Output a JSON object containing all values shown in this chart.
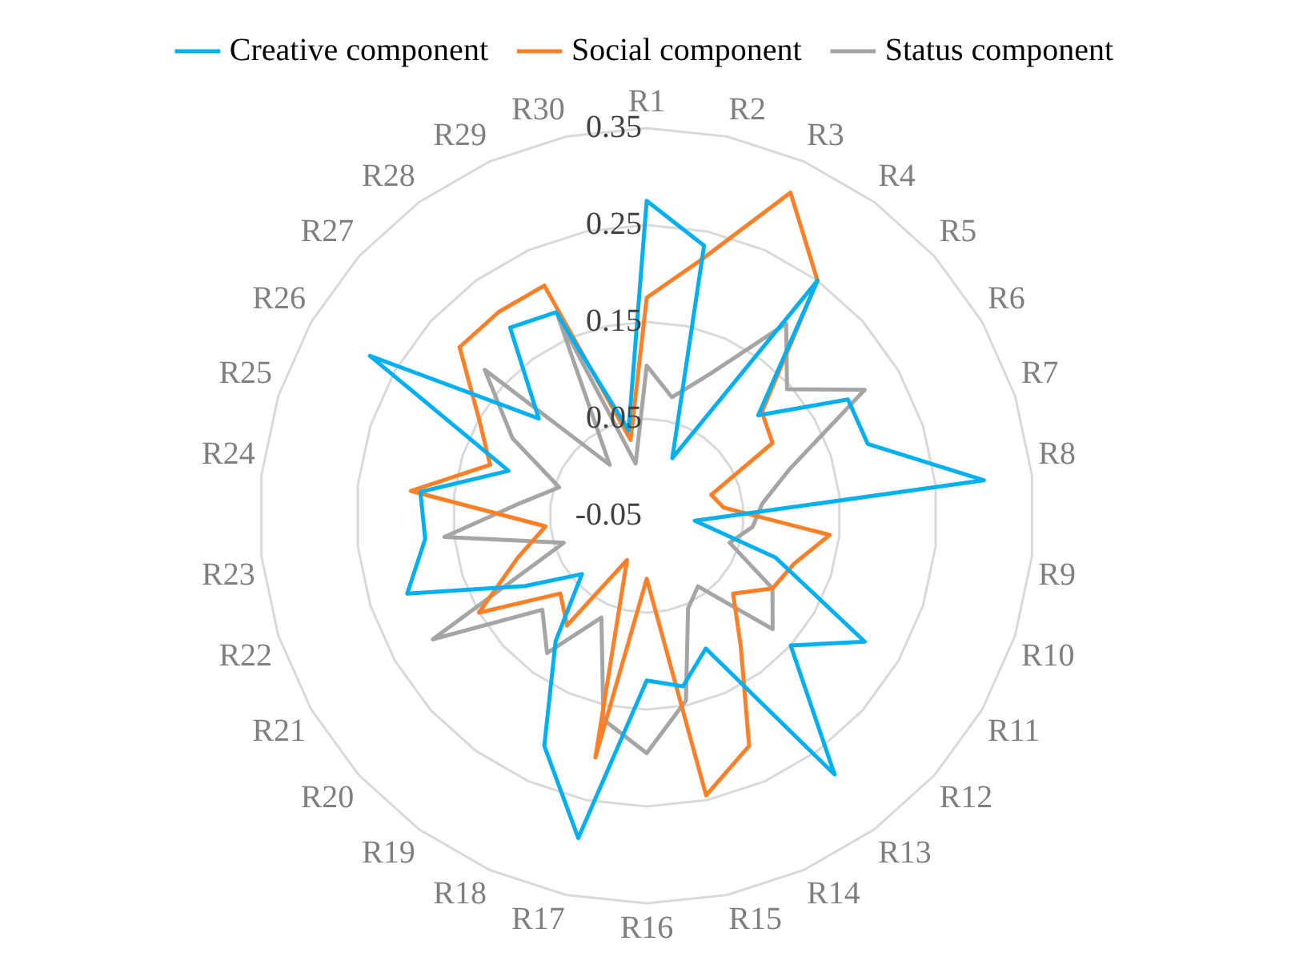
{
  "chart_data": {
    "type": "radar",
    "categories": [
      "R1",
      "R2",
      "R3",
      "R4",
      "R5",
      "R6",
      "R7",
      "R8",
      "R9",
      "R10",
      "R11",
      "R12",
      "R13",
      "R14",
      "R15",
      "R16",
      "R17",
      "R18",
      "R19",
      "R20",
      "R21",
      "R22",
      "R23",
      "R24",
      "R25",
      "R26",
      "R27",
      "R28",
      "R29",
      "R30"
    ],
    "series": [
      {
        "name": "Creative component",
        "color": "#00b0f0",
        "values": [
          0.275,
          0.235,
          0.015,
          0.25,
          0.105,
          0.19,
          0.19,
          0.3,
          0.0,
          0.09,
          0.21,
          0.15,
          0.28,
          0.1,
          0.13,
          0.12,
          0.29,
          0.21,
          0.11,
          0.04,
          0.095,
          0.21,
          0.18,
          0.185,
          0.1,
          0.28,
          0.1,
          0.19,
          0.18,
          0.04
        ]
      },
      {
        "name": "Social component",
        "color": "#ff7f27",
        "values": [
          0.175,
          0.22,
          0.315,
          0.25,
          0.11,
          0.1,
          0.02,
          0.03,
          0.14,
          0.11,
          0.1,
          0.07,
          0.115,
          0.21,
          0.245,
          0.015,
          0.205,
          0.0,
          0.09,
          0.07,
          0.15,
          0.09,
          0.055,
          0.195,
          0.12,
          0.15,
          0.21,
          0.21,
          0.21,
          0.03
        ]
      },
      {
        "name": "Status component",
        "color": "#a5a5a5",
        "values": [
          0.105,
          0.075,
          0.11,
          0.195,
          0.145,
          0.21,
          0.105,
          0.07,
          0.06,
          0.04,
          0.1,
          0.125,
          0.04,
          0.055,
          0.145,
          0.195,
          0.165,
          0.065,
          0.125,
          0.095,
          0.205,
          0.04,
          0.16,
          0.08,
          0.045,
          0.11,
          0.175,
          0.015,
          0.175,
          0.005
        ]
      }
    ],
    "ylim": [
      -0.05,
      0.35
    ],
    "yticks": [
      -0.05,
      0.05,
      0.15,
      0.25,
      0.35
    ],
    "grid": true,
    "legend": "top",
    "marker": "none"
  }
}
